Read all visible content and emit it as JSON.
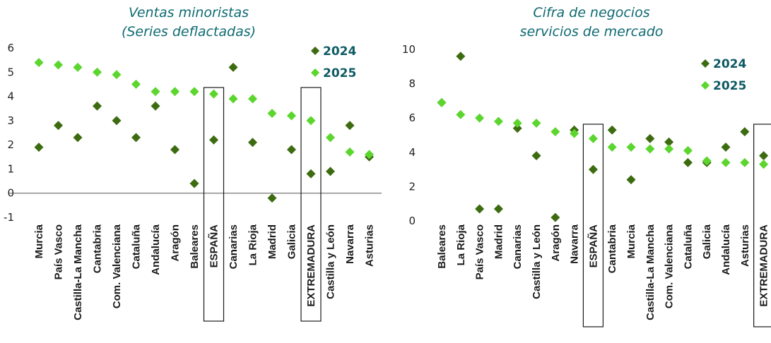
{
  "chart_data": [
    {
      "type": "scatter",
      "title": [
        "Ventas minoristas",
        "(Series deflactadas)"
      ],
      "categories": [
        "Murcia",
        "País Vasco",
        "Castilla-La Mancha",
        "Cantabria",
        "Com. Valenciana",
        "Cataluña",
        "Andalucía",
        "Aragón",
        "Baleares",
        "ESPAÑA",
        "Canarias",
        "La Rioja",
        "Madrid",
        "Galicia",
        "EXTREMADURA",
        "Castilla y León",
        "Navarra",
        "Asturias"
      ],
      "series": [
        {
          "name": "2024",
          "color": "#3d6b10",
          "values": [
            1.9,
            2.8,
            2.3,
            3.6,
            3.0,
            2.3,
            3.6,
            1.8,
            0.4,
            2.2,
            5.2,
            2.1,
            -0.2,
            1.8,
            0.8,
            0.9,
            2.8,
            1.5
          ]
        },
        {
          "name": "2025",
          "color": "#5cd62e",
          "values": [
            5.4,
            5.3,
            5.2,
            5.0,
            4.9,
            4.5,
            4.2,
            4.2,
            4.2,
            4.1,
            3.9,
            3.9,
            3.3,
            3.2,
            3.0,
            2.3,
            1.7,
            1.6
          ]
        }
      ],
      "ylim": [
        -1,
        6
      ],
      "yticks": [
        "-1",
        "0",
        "1",
        "2",
        "3",
        "4",
        "5",
        "6"
      ],
      "highlighted": [
        "ESPAÑA",
        "EXTREMADURA"
      ],
      "legend_position": "top-right",
      "grid": false
    },
    {
      "type": "scatter",
      "title": [
        "Cifra de negocios",
        "servicios de mercado"
      ],
      "categories": [
        "Baleares",
        "La Rioja",
        "País Vasco",
        "Madrid",
        "Canarias",
        "Castilla y León",
        "Aragón",
        "Navarra",
        "ESPAÑA",
        "Cantabria",
        "Murcia",
        "Castilla-La Mancha",
        "Com. Valenciana",
        "Cataluña",
        "Galicia",
        "Andalucía",
        "Asturias",
        "EXTREMADURA"
      ],
      "series": [
        {
          "name": "2024",
          "color": "#3d6b10",
          "values": [
            6.9,
            9.6,
            0.7,
            0.7,
            5.4,
            3.8,
            0.2,
            5.3,
            3.0,
            5.3,
            2.4,
            4.8,
            4.6,
            3.4,
            3.4,
            4.3,
            5.2,
            3.8
          ]
        },
        {
          "name": "2025",
          "color": "#5cd62e",
          "values": [
            6.9,
            6.2,
            6.0,
            5.8,
            5.7,
            5.7,
            5.2,
            5.1,
            4.8,
            4.3,
            4.3,
            4.2,
            4.2,
            4.1,
            3.5,
            3.4,
            3.4,
            3.3
          ]
        }
      ],
      "ylim": [
        0,
        10
      ],
      "yticks": [
        "0",
        "2",
        "4",
        "6",
        "8",
        "10"
      ],
      "highlighted": [
        "ESPAÑA",
        "EXTREMADURA"
      ],
      "legend_position": "top-right",
      "grid": false
    }
  ]
}
